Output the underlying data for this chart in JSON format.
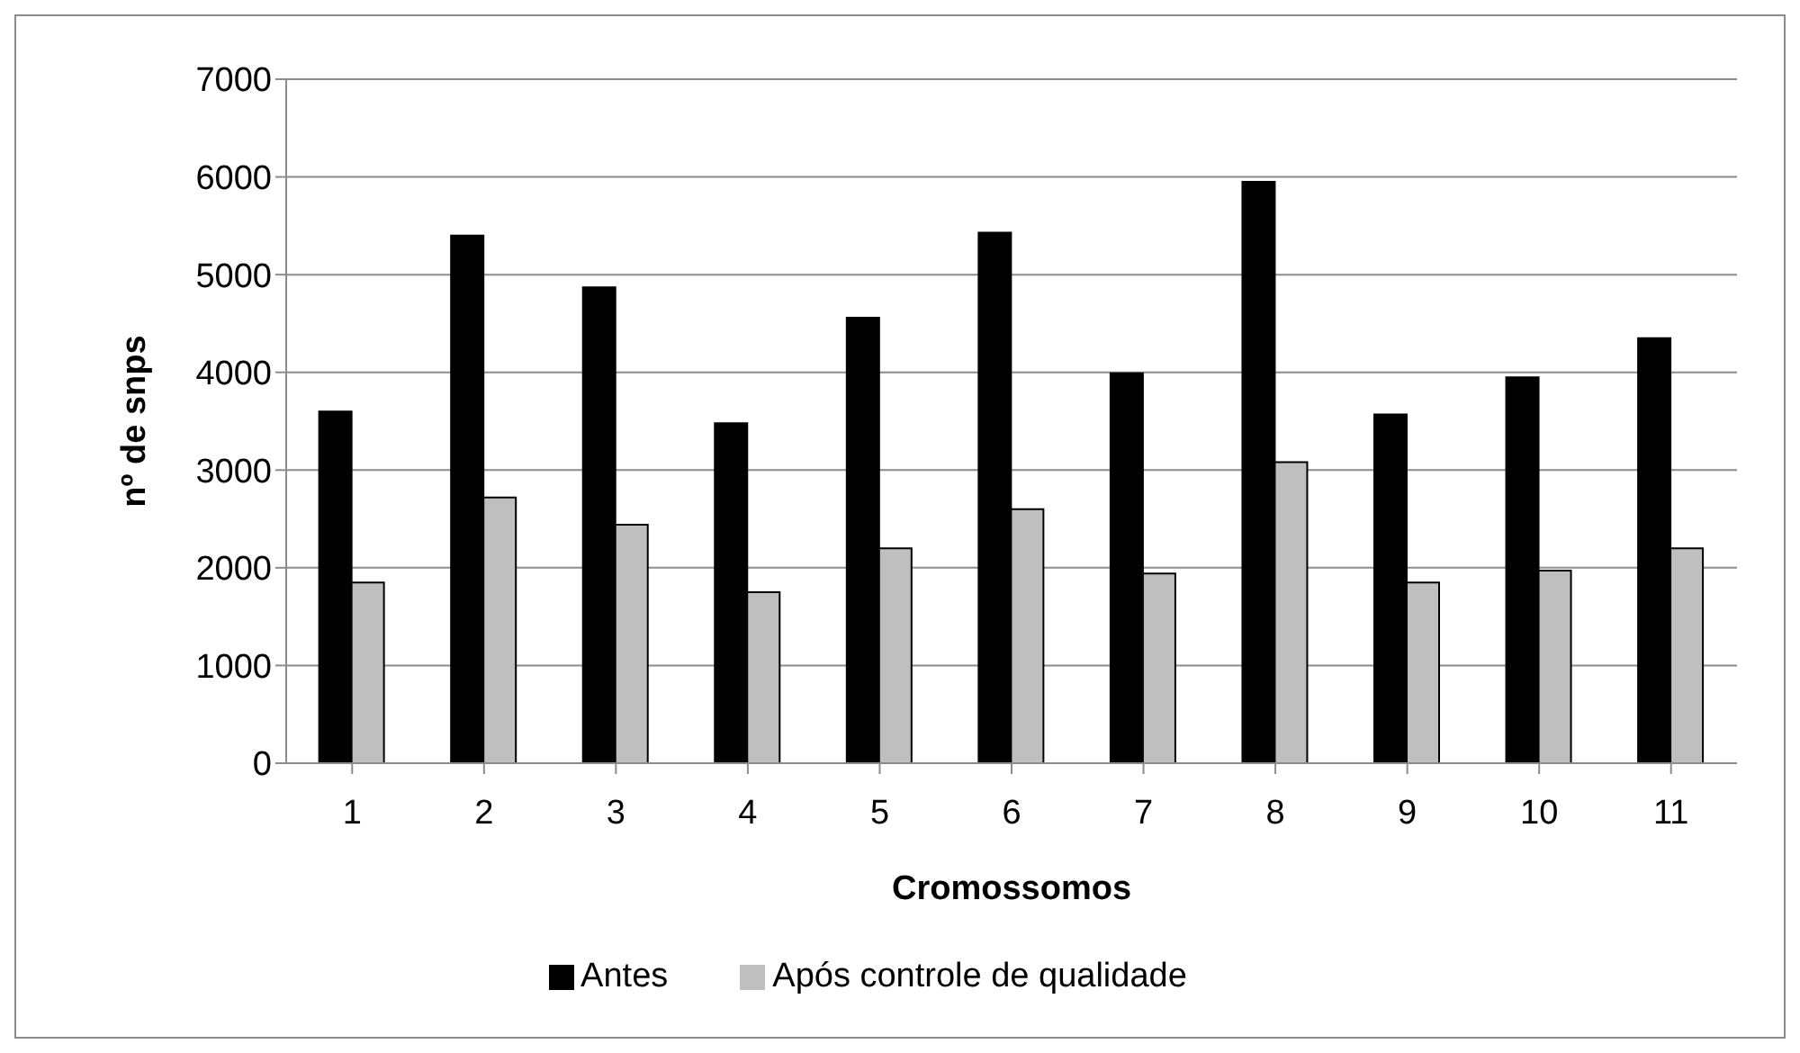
{
  "chart_data": {
    "type": "bar",
    "xlabel": "Cromossomos",
    "ylabel": "nº de snps",
    "categories": [
      "1",
      "2",
      "3",
      "4",
      "5",
      "6",
      "7",
      "8",
      "9",
      "10",
      "11"
    ],
    "series": [
      {
        "name": "Antes",
        "color": "#000000",
        "values": [
          3600,
          5400,
          4870,
          3480,
          4560,
          5430,
          3990,
          5950,
          3570,
          3950,
          4350
        ]
      },
      {
        "name": "Após controle de qualidade",
        "color": "#bfbfbf",
        "values": [
          1850,
          2720,
          2440,
          1750,
          2200,
          2600,
          1940,
          3080,
          1850,
          1970,
          2200
        ]
      }
    ],
    "ylim": [
      0,
      7000
    ],
    "yticks": [
      0,
      1000,
      2000,
      3000,
      4000,
      5000,
      6000,
      7000
    ],
    "grid": "y",
    "legend": "bottom"
  }
}
